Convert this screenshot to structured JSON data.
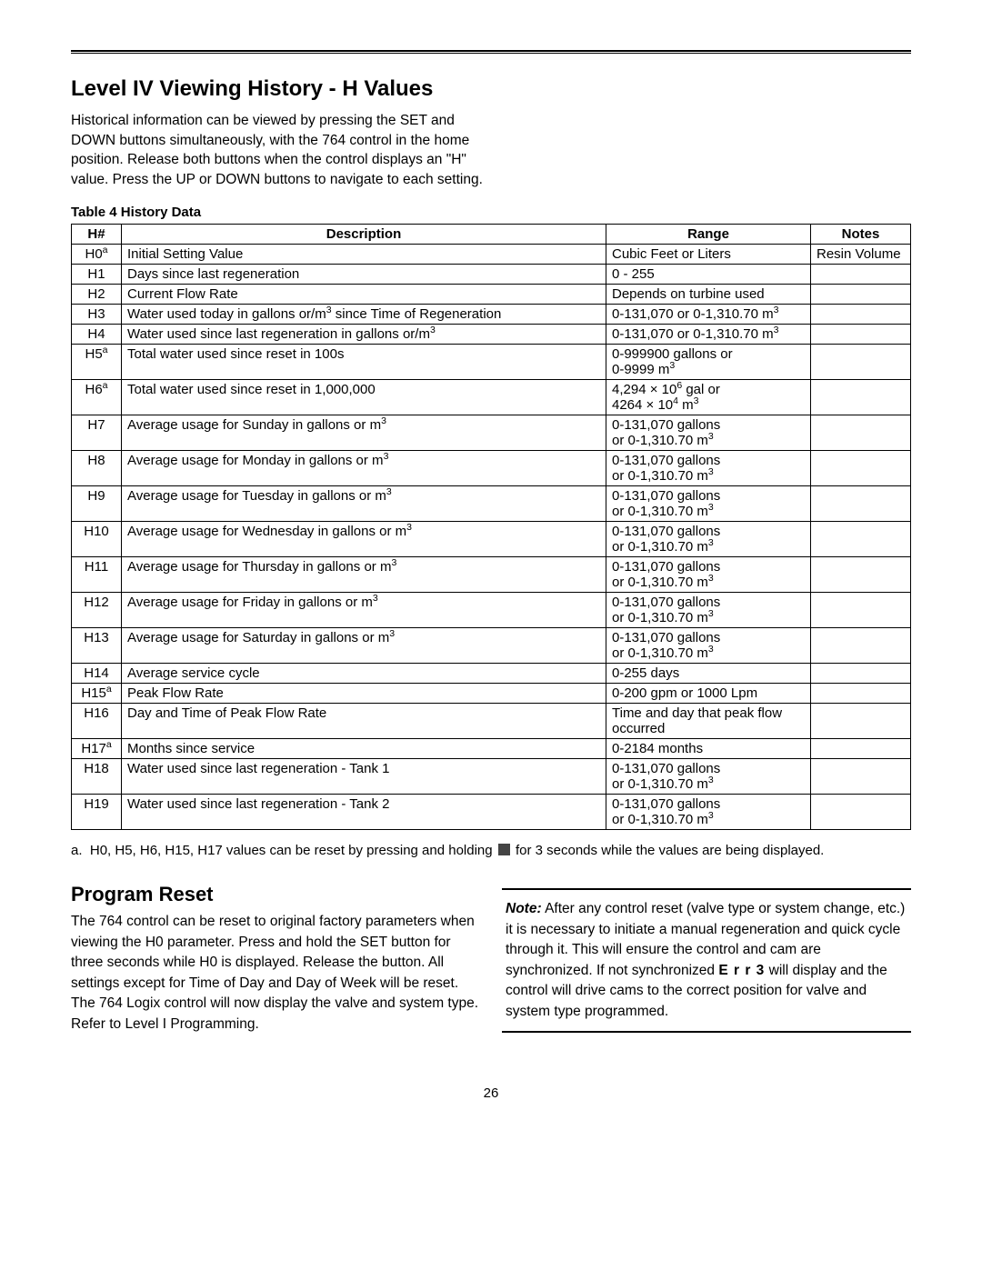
{
  "page": {
    "title": "Level IV Viewing History - H Values",
    "intro": "Historical information can be viewed by pressing the SET and DOWN buttons simultaneously, with the 764 control in the home position. Release both buttons when the control displays an \"H\" value. Press the UP or DOWN buttons to navigate to each setting.",
    "table_title": "Table 4  History Data",
    "columns": [
      "H#",
      "Description",
      "Range",
      "Notes"
    ],
    "rows": [
      {
        "h": "H0",
        "sup": "a",
        "desc": "Initial Setting Value",
        "range_html": "Cubic Feet or Liters",
        "notes": "Resin Volume"
      },
      {
        "h": "H1",
        "sup": "",
        "desc": "Days since last regeneration",
        "range_html": "0 - 255",
        "notes": ""
      },
      {
        "h": "H2",
        "sup": "",
        "desc": "Current Flow Rate",
        "range_html": "Depends on turbine used",
        "notes": ""
      },
      {
        "h": "H3",
        "sup": "",
        "desc_html": "Water used today in gallons or/m<sup>3</sup> since Time of Regeneration",
        "range_html": "0-131,070 or 0-1,310.70 m<sup>3</sup>",
        "notes": ""
      },
      {
        "h": "H4",
        "sup": "",
        "desc_html": "Water used since last regeneration in gallons or/m<sup>3</sup>",
        "range_html": "0-131,070 or 0-1,310.70 m<sup>3</sup>",
        "notes": ""
      },
      {
        "h": "H5",
        "sup": "a",
        "desc": "Total water used since reset in 100s",
        "range_html": "0-999900 gallons or<br>0-9999 m<sup>3</sup>",
        "notes": ""
      },
      {
        "h": "H6",
        "sup": "a",
        "desc": "Total water used since reset in 1,000,000",
        "range_html": "4,294 × 10<sup>6</sup> gal or<br>4264 × 10<sup>4</sup> m<sup>3</sup>",
        "notes": ""
      },
      {
        "h": "H7",
        "sup": "",
        "desc_html": "Average usage for Sunday in gallons or m<sup>3</sup>",
        "range_html": "0-131,070 gallons<br>or 0-1,310.70 m<sup>3</sup>",
        "notes": ""
      },
      {
        "h": "H8",
        "sup": "",
        "desc_html": "Average usage for Monday in gallons or m<sup>3</sup>",
        "range_html": "0-131,070 gallons<br>or 0-1,310.70 m<sup>3</sup>",
        "notes": ""
      },
      {
        "h": "H9",
        "sup": "",
        "desc_html": "Average usage for Tuesday in gallons or m<sup>3</sup>",
        "range_html": "0-131,070 gallons<br>or 0-1,310.70 m<sup>3</sup>",
        "notes": ""
      },
      {
        "h": "H10",
        "sup": "",
        "desc_html": "Average usage for Wednesday in gallons or m<sup>3</sup>",
        "range_html": "0-131,070 gallons<br>or 0-1,310.70 m<sup>3</sup>",
        "notes": ""
      },
      {
        "h": "H11",
        "sup": "",
        "desc_html": "Average usage for Thursday in gallons or m<sup>3</sup>",
        "range_html": "0-131,070 gallons<br>or 0-1,310.70 m<sup>3</sup>",
        "notes": ""
      },
      {
        "h": "H12",
        "sup": "",
        "desc_html": "Average usage for Friday in gallons or m<sup>3</sup>",
        "range_html": "0-131,070 gallons<br>or 0-1,310.70 m<sup>3</sup>",
        "notes": ""
      },
      {
        "h": "H13",
        "sup": "",
        "desc_html": "Average usage for Saturday in gallons or m<sup>3</sup>",
        "range_html": "0-131,070 gallons<br>or 0-1,310.70 m<sup>3</sup>",
        "notes": ""
      },
      {
        "h": "H14",
        "sup": "",
        "desc": "Average service cycle",
        "range_html": "0-255 days",
        "notes": ""
      },
      {
        "h": "H15",
        "sup": "a",
        "desc": "Peak Flow Rate",
        "range_html": "0-200 gpm or 1000 Lpm",
        "notes": ""
      },
      {
        "h": "H16",
        "sup": "",
        "desc": "Day and Time of Peak Flow Rate",
        "range_html": "Time and day that peak flow occurred",
        "notes": ""
      },
      {
        "h": "H17",
        "sup": "a",
        "desc": "Months since service",
        "range_html": "0-2184 months",
        "notes": ""
      },
      {
        "h": "H18",
        "sup": "",
        "desc": "Water used since last regeneration - Tank 1",
        "range_html": "0-131,070 gallons<br>or 0-1,310.70 m<sup>3</sup>",
        "notes": ""
      },
      {
        "h": "H19",
        "sup": "",
        "desc": "Water used since last regeneration - Tank 2",
        "range_html": "0-131,070 gallons<br>or 0-1,310.70 m<sup>3</sup>",
        "notes": ""
      }
    ],
    "footnote_prefix": "a.",
    "footnote_before": "H0, H5, H6, H15, H17 values can be reset by pressing and holding",
    "footnote_after": "for 3 seconds while the values are being displayed.",
    "reset_title": "Program Reset",
    "reset_para": "The 764 control can be reset to original factory parameters when viewing the H0 parameter. Press and hold the SET button for three seconds while H0 is displayed.  Release the button. All settings except for Time of Day and Day of Week will be reset. The 764 Logix control will now display the valve and system type. Refer to Level I Programming.",
    "note_label": "Note:",
    "note_before": "After any control reset (valve type or system change, etc.) it is necessary to initiate a manual regeneration and quick cycle through it. This will ensure the control and cam are synchronized. If not synchronized",
    "note_err": "E r r 3",
    "note_after": "will display and the control will drive cams to the correct position for valve and system type programmed.",
    "page_number": "26"
  }
}
